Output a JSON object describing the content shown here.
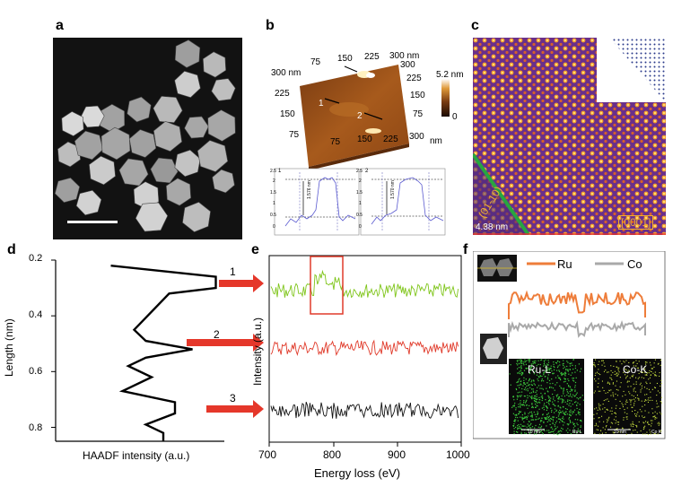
{
  "panels": {
    "a": {
      "label": "a"
    },
    "b": {
      "label": "b",
      "afm_axis": {
        "top_ticks": [
          "75",
          "150",
          "225",
          "300 nm"
        ],
        "left_ticks": [
          "300 nm",
          "225",
          "150",
          "75"
        ],
        "right_ticks": [
          "300",
          "225",
          "150",
          "75"
        ],
        "bottom_ticks": [
          "75",
          "150",
          "225",
          "300",
          "nm"
        ]
      },
      "colorbar": {
        "max": "5.2 nm",
        "min": "0"
      },
      "markers": [
        "1",
        "2"
      ],
      "profile_left": {
        "yticks": [
          "2.5",
          "2",
          "1.5",
          "1",
          "0.5",
          "0"
        ],
        "height": "1.576 nm",
        "marker": "1"
      },
      "profile_right": {
        "yticks": [
          "2.5",
          "2",
          "1.5",
          "1",
          "0.5",
          "0"
        ],
        "height": "1.570 nm",
        "marker": "2"
      }
    },
    "c": {
      "label": "c",
      "facet": "(01-10)",
      "direction": "[0001]",
      "thickness": "4.38 nm"
    },
    "d": {
      "label": "d",
      "ylabel": "Length (nm)",
      "yticks": [
        "0.2",
        "0.4",
        "0.6",
        "0.8"
      ],
      "xlabel": "HAADF intensity (a.u.)",
      "markers": [
        "1",
        "2",
        "3"
      ]
    },
    "e": {
      "label": "e",
      "ylabel": "Intensity (a.u.)",
      "xlabel": "Energy loss (eV)",
      "xticks": [
        "700",
        "800",
        "900",
        "1000"
      ]
    },
    "f": {
      "label": "f",
      "legend": [
        "Ru",
        "Co"
      ],
      "maps": [
        "Ru-L",
        "Co-K"
      ],
      "scalebar": [
        "10 nm",
        "10 nm"
      ],
      "corner": [
        "Ru L",
        "Co K"
      ]
    }
  },
  "colors": {
    "ru": "#ee7d3a",
    "co": "#a9a9a9",
    "green_trace": "#7fc51a",
    "red_trace": "#e03a2a",
    "arrow": "#e5372a",
    "map_ru": "#3ccc3c",
    "map_co": "#c8e040"
  },
  "chart_data": [
    {
      "type": "line",
      "xlabel": "HAADF intensity (a.u.)",
      "ylabel": "Length (nm)",
      "ylim": [
        0.2,
        0.85
      ],
      "series": [
        {
          "x": [
            0.05,
            0.95,
            0.95,
            0.55,
            0.25,
            0.35,
            0.75,
            0.35,
            0.2,
            0.4,
            0.15,
            0.6,
            0.6,
            0.35,
            0.5,
            0.5
          ],
          "y": [
            0.22,
            0.26,
            0.3,
            0.32,
            0.45,
            0.49,
            0.52,
            0.55,
            0.58,
            0.62,
            0.67,
            0.71,
            0.75,
            0.79,
            0.82,
            0.85
          ]
        }
      ]
    },
    {
      "type": "line",
      "xlabel": "Energy loss (eV)",
      "ylabel": "Intensity (a.u.)",
      "xlim": [
        700,
        1000
      ],
      "series": [
        {
          "color": "green",
          "offset": 3
        },
        {
          "color": "red",
          "offset": 2
        },
        {
          "color": "black",
          "offset": 1
        }
      ]
    }
  ]
}
